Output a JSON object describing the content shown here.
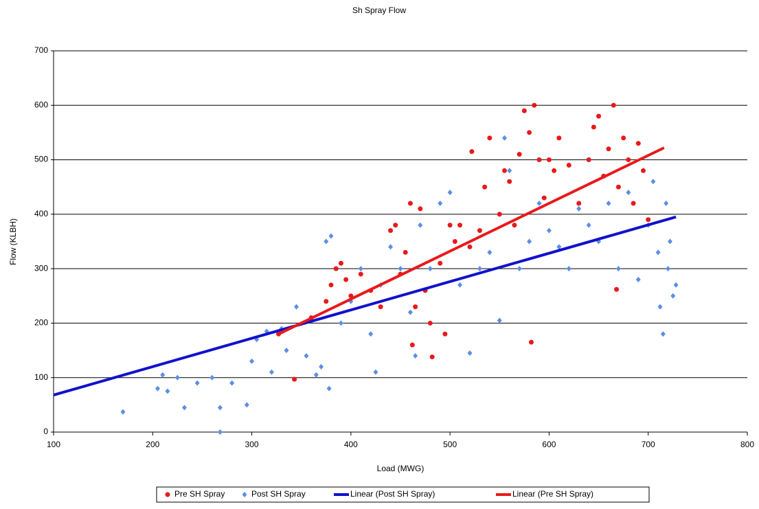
{
  "chart_data": {
    "type": "scatter",
    "title": "Sh Spray Flow",
    "x_label": "Load (MWG)",
    "y_label": "Flow (KLBH)",
    "xlim": [
      100,
      800
    ],
    "xticks": [
      100,
      200,
      300,
      400,
      500,
      600,
      700,
      800
    ],
    "ylim": [
      0,
      700
    ],
    "yticks": [
      0,
      100,
      200,
      300,
      400,
      500,
      600,
      700
    ],
    "grid": true,
    "legend": "bottom",
    "series": [
      {
        "name": "Pre SH Spray",
        "type": "scatter",
        "marker": "circle",
        "color": "#e8191b",
        "x": [
          327,
          343,
          360,
          375,
          380,
          385,
          390,
          395,
          400,
          410,
          420,
          430,
          440,
          445,
          450,
          455,
          460,
          462,
          465,
          470,
          475,
          480,
          482,
          490,
          495,
          500,
          505,
          510,
          520,
          522,
          530,
          535,
          540,
          550,
          555,
          560,
          565,
          570,
          575,
          580,
          582,
          585,
          590,
          595,
          600,
          605,
          610,
          620,
          630,
          640,
          645,
          650,
          655,
          660,
          665,
          668,
          670,
          675,
          680,
          685,
          690,
          695,
          700
        ],
        "values": [
          180,
          97,
          210,
          240,
          270,
          300,
          310,
          280,
          250,
          290,
          260,
          230,
          370,
          380,
          290,
          330,
          420,
          160,
          230,
          410,
          260,
          200,
          138,
          310,
          180,
          380,
          350,
          380,
          340,
          515,
          370,
          450,
          540,
          400,
          480,
          460,
          380,
          510,
          590,
          550,
          165,
          600,
          500,
          430,
          500,
          480,
          540,
          490,
          420,
          500,
          560,
          580,
          470,
          520,
          600,
          262,
          450,
          540,
          500,
          420,
          530,
          480,
          390
        ]
      },
      {
        "name": "Post SH Spray",
        "type": "scatter",
        "marker": "diamond",
        "color": "#5b8ee6",
        "x": [
          170,
          205,
          210,
          215,
          225,
          232,
          245,
          260,
          268,
          268,
          280,
          295,
          300,
          305,
          315,
          320,
          330,
          335,
          345,
          355,
          365,
          370,
          375,
          378,
          380,
          390,
          400,
          410,
          420,
          425,
          430,
          440,
          450,
          460,
          465,
          470,
          480,
          490,
          500,
          510,
          520,
          530,
          540,
          550,
          555,
          560,
          570,
          580,
          590,
          600,
          610,
          620,
          630,
          640,
          650,
          660,
          670,
          680,
          690,
          700,
          705,
          710,
          712,
          715,
          718,
          720,
          722,
          725,
          728
        ],
        "values": [
          37,
          80,
          105,
          75,
          100,
          45,
          90,
          100,
          0,
          45,
          90,
          50,
          130,
          170,
          185,
          110,
          190,
          150,
          230,
          140,
          105,
          120,
          350,
          80,
          360,
          200,
          240,
          300,
          180,
          110,
          270,
          340,
          300,
          220,
          140,
          380,
          300,
          420,
          440,
          270,
          145,
          300,
          330,
          205,
          540,
          480,
          300,
          350,
          420,
          370,
          340,
          300,
          410,
          380,
          350,
          420,
          300,
          440,
          280,
          380,
          460,
          330,
          230,
          180,
          420,
          300,
          350,
          250,
          270
        ]
      },
      {
        "name": "Linear (Post SH Spray)",
        "type": "line",
        "color": "#1111cc",
        "x": [
          100,
          728
        ],
        "values": [
          68,
          395
        ]
      },
      {
        "name": "Linear (Pre SH Spray)",
        "type": "line",
        "color": "#e8191b",
        "x": [
          327,
          716
        ],
        "values": [
          180,
          522
        ]
      }
    ]
  }
}
